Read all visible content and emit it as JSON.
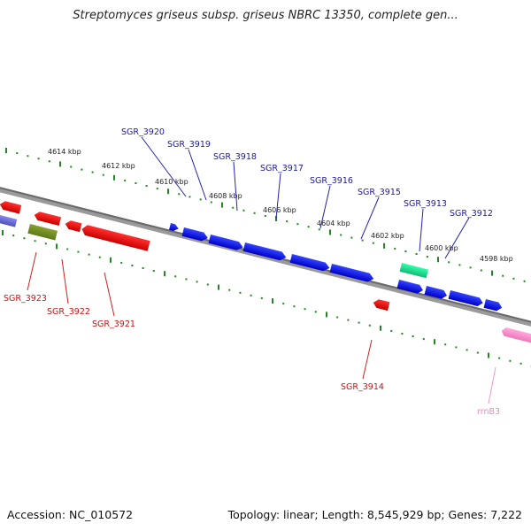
{
  "title": "Streptomyces griseus subsp. griseus NBRC 13350, complete gen...",
  "footer": {
    "accession": "Accession: NC_010572",
    "summary": "Topology: linear; Length: 8,545,929 bp; Genes: 7,222"
  },
  "colors": {
    "forward_gene": "#0000ee",
    "reverse_gene": "#ee0000",
    "forward_label": "#1a1aa0",
    "reverse_label": "#cc1111",
    "rrna": "#ff88cc",
    "rrna_label": "#ee88bb",
    "tick": "#228822",
    "backbone": "#777777"
  },
  "scale_labels": [
    "4614 kbp",
    "4612 kbp",
    "4610 kbp",
    "4608 kbp",
    "4606 kbp",
    "4604 kbp",
    "4602 kbp",
    "4600 kbp",
    "4598 kbp"
  ],
  "forward_gene_labels": [
    "SGR_3920",
    "SGR_3919",
    "SGR_3918",
    "SGR_3917",
    "SGR_3916",
    "SGR_3915",
    "SGR_3913",
    "SGR_3912"
  ],
  "reverse_gene_labels": [
    "SGR_3923",
    "SGR_3922",
    "SGR_3921",
    "SGR_3914"
  ],
  "rrna_labels": [
    "rrnB3"
  ]
}
